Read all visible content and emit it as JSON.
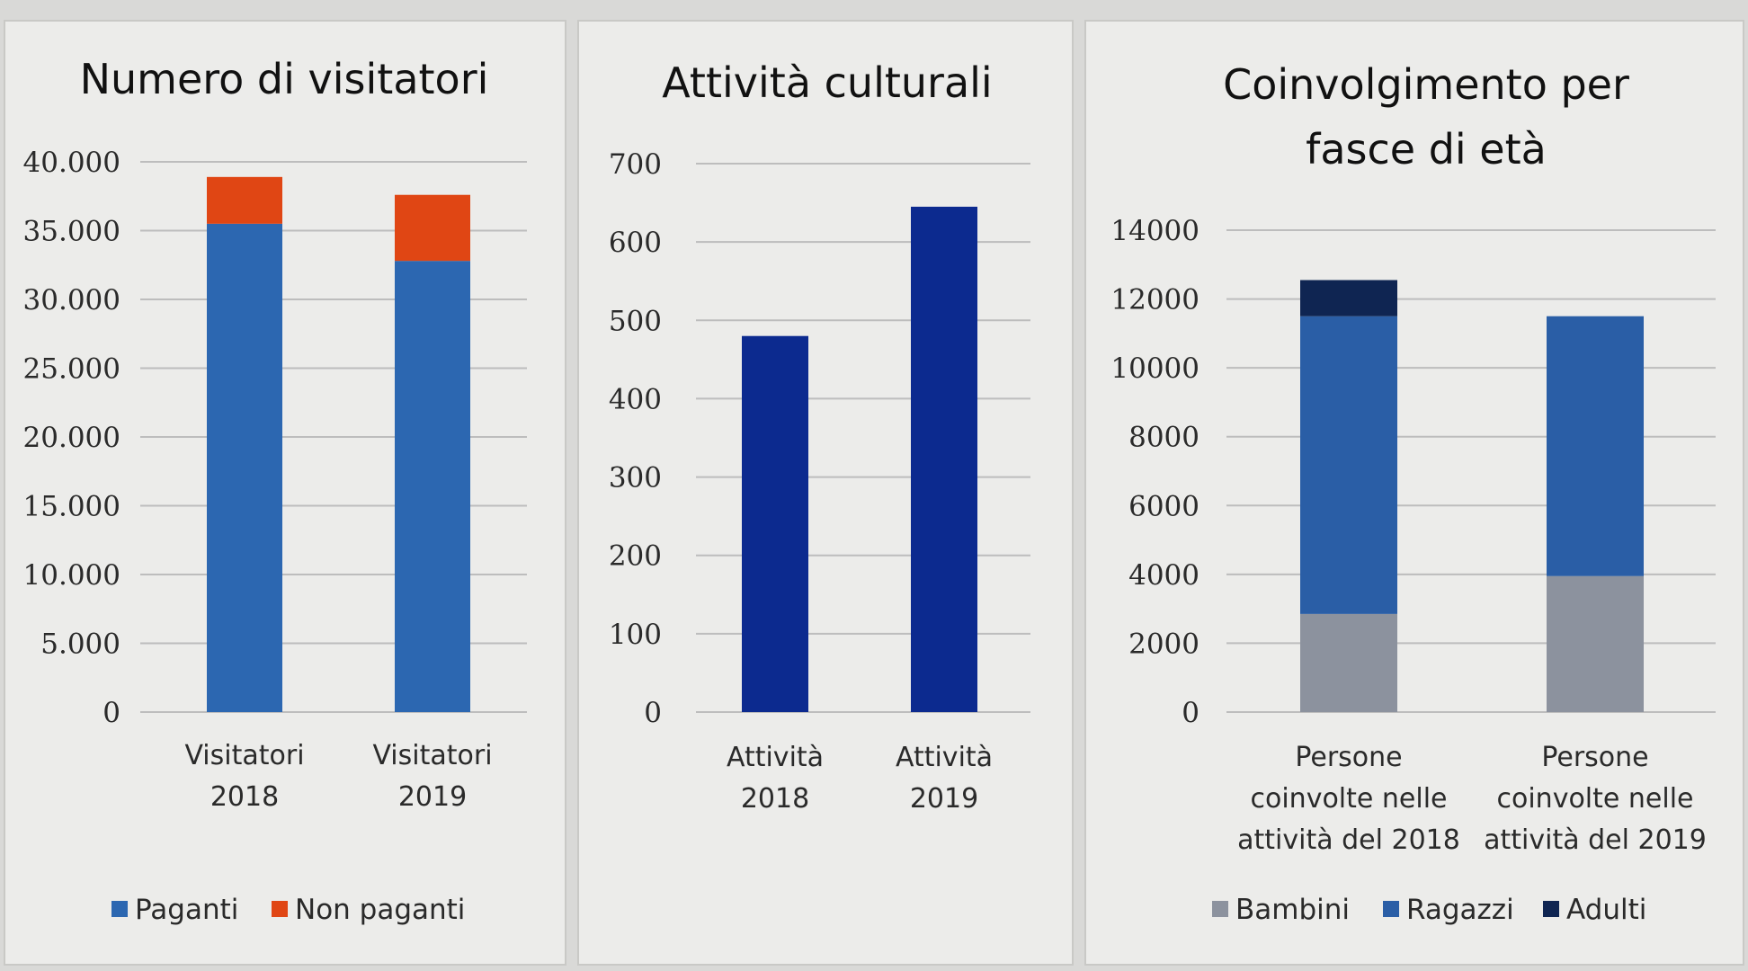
{
  "colors": {
    "paganti": "#2c67b1",
    "non_paganti": "#e04614",
    "attivita": "#0c2a8f",
    "bambini": "#8c929e",
    "ragazzi": "#2a5ea6",
    "adulti": "#0f2552"
  },
  "chart_data": [
    {
      "type": "bar",
      "stacked": true,
      "title": "Numero di visitatori",
      "categories": [
        [
          "Visitatori",
          "2018"
        ],
        [
          "Visitatori",
          "2019"
        ]
      ],
      "series": [
        {
          "name": "Paganti",
          "color": "#2c67b1",
          "values": [
            35500,
            32800
          ]
        },
        {
          "name": "Non paganti",
          "color": "#e04614",
          "values": [
            3400,
            4800
          ]
        }
      ],
      "ylim": [
        0,
        40000
      ],
      "yticks": [
        0,
        5000,
        10000,
        15000,
        20000,
        25000,
        30000,
        35000,
        40000
      ],
      "ytick_labels": [
        "0",
        "5.000",
        "10.000",
        "15.000",
        "20.000",
        "25.000",
        "30.000",
        "35.000",
        "40.000"
      ],
      "grid": true,
      "legend": "bottom"
    },
    {
      "type": "bar",
      "stacked": false,
      "title": "Attività culturali",
      "categories": [
        [
          "Attività",
          "2018"
        ],
        [
          "Attività",
          "2019"
        ]
      ],
      "series": [
        {
          "name": "",
          "color": "#0c2a8f",
          "values": [
            480,
            645
          ]
        }
      ],
      "ylim": [
        0,
        700
      ],
      "yticks": [
        0,
        100,
        200,
        300,
        400,
        500,
        600,
        700
      ],
      "ytick_labels": [
        "0",
        "100",
        "200",
        "300",
        "400",
        "500",
        "600",
        "700"
      ],
      "grid": true,
      "legend": "none"
    },
    {
      "type": "bar",
      "stacked": true,
      "title": [
        "Coinvolgimento per",
        "fasce di età"
      ],
      "categories": [
        [
          "Persone",
          "coinvolte nelle",
          "attività del 2018"
        ],
        [
          "Persone",
          "coinvolte nelle",
          "attività del 2019"
        ]
      ],
      "series": [
        {
          "name": "Bambini",
          "color": "#8c929e",
          "values": [
            2850,
            3950
          ]
        },
        {
          "name": "Ragazzi",
          "color": "#2a5ea6",
          "values": [
            8650,
            7550
          ]
        },
        {
          "name": "Adulti",
          "color": "#0f2552",
          "values": [
            1050,
            0
          ]
        }
      ],
      "ylim": [
        0,
        14000
      ],
      "yticks": [
        0,
        2000,
        4000,
        6000,
        8000,
        10000,
        12000,
        14000
      ],
      "ytick_labels": [
        "0",
        "2000",
        "4000",
        "6000",
        "8000",
        "10000",
        "12000",
        "14000"
      ],
      "grid": true,
      "legend": "bottom"
    }
  ]
}
